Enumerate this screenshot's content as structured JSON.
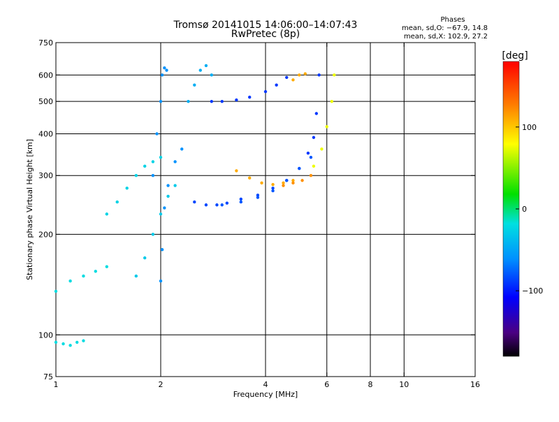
{
  "chart_data": {
    "type": "scatter",
    "title": "Tromsø 20141015 14:06:00–14:07:43",
    "subtitle": "RwPretec (8p)",
    "xlabel": "Frequency [MHz]",
    "ylabel": "Stationary phase Virtual Height [km]",
    "x_scale": "log",
    "y_scale": "log",
    "xlim": [
      1,
      16
    ],
    "ylim": [
      75,
      750
    ],
    "x_ticks": [
      1,
      2,
      4,
      6,
      8,
      10,
      16
    ],
    "x_tick_labels": [
      "1",
      "2",
      "4",
      "6",
      "8",
      "10",
      "16"
    ],
    "y_ticks": [
      75,
      100,
      200,
      300,
      400,
      500,
      600,
      750
    ],
    "y_tick_labels": [
      "75",
      "100",
      "200",
      "300",
      "400",
      "500",
      "600",
      "750"
    ],
    "x_gridlines": [
      2,
      4,
      6,
      8,
      10
    ],
    "y_gridlines": [
      100,
      200,
      300,
      400,
      500,
      600
    ],
    "phases_box": {
      "title": "Phases",
      "line1": "mean, sd,O: −67.9, 14.8",
      "line2": "mean, sd,X: 102.9, 27.2"
    },
    "colorbar": {
      "label": "[deg]",
      "range": [
        -180,
        180
      ],
      "ticks": [
        100,
        0,
        -100
      ],
      "tick_labels": [
        "100",
        "0",
        "−100"
      ]
    },
    "series": [
      {
        "traces": [
          {
            "x": [
              1.0,
              1.1,
              1.2,
              1.3,
              1.4
            ],
            "y": [
              135,
              145,
              150,
              155,
              160
            ],
            "phase": -20
          },
          {
            "x": [
              1.0,
              1.05,
              1.1,
              1.15,
              1.2
            ],
            "y": [
              95,
              94,
              93,
              95,
              96
            ],
            "phase": -20
          },
          {
            "x": [
              1.4,
              1.5,
              1.6,
              1.7,
              1.8,
              1.9,
              2.0
            ],
            "y": [
              230,
              250,
              275,
              300,
              320,
              330,
              340
            ],
            "phase": -25
          },
          {
            "x": [
              1.7,
              1.8,
              1.9,
              2.0,
              2.1,
              2.2
            ],
            "y": [
              150,
              170,
              200,
              230,
              260,
              280
            ],
            "phase": -30
          },
          {
            "x": [
              1.9,
              1.95,
              2.0,
              2.02,
              2.05,
              2.08
            ],
            "y": [
              300,
              400,
              500,
              600,
              630,
              620
            ],
            "phase": -60
          },
          {
            "x": [
              2.0,
              2.02,
              2.05,
              2.1,
              2.2,
              2.3
            ],
            "y": [
              145,
              180,
              240,
              280,
              330,
              360
            ],
            "phase": -60
          },
          {
            "x": [
              2.4,
              2.5,
              2.6,
              2.7,
              2.8
            ],
            "y": [
              500,
              560,
              620,
              640,
              600
            ],
            "phase": -45
          },
          {
            "x": [
              2.5,
              2.7,
              2.9,
              3.1,
              3.4,
              3.8,
              4.2,
              4.6
            ],
            "y": [
              250,
              245,
              245,
              248,
              255,
              262,
              275,
              290
            ],
            "phase": -85
          },
          {
            "x": [
              4.6,
              5.0,
              5.3,
              5.5,
              5.6,
              5.7
            ],
            "y": [
              290,
              315,
              350,
              390,
              460,
              600
            ],
            "phase": -90
          },
          {
            "x": [
              2.8,
              3.0,
              3.3,
              3.6,
              4.0,
              4.3,
              4.6
            ],
            "y": [
              500,
              500,
              505,
              515,
              535,
              560,
              590
            ],
            "phase": -90
          },
          {
            "x": [
              3.0,
              3.4,
              3.8,
              4.2,
              4.6,
              5.0,
              5.4
            ],
            "y": [
              245,
              250,
              258,
              270,
              290,
              315,
              340
            ],
            "phase": -80
          },
          {
            "x": [
              3.3,
              3.6,
              3.9,
              4.2,
              4.5,
              4.8
            ],
            "y": [
              310,
              295,
              285,
              282,
              285,
              290
            ],
            "phase": 110
          },
          {
            "x": [
              4.5,
              4.8,
              5.1,
              5.4
            ],
            "y": [
              280,
              285,
              290,
              300
            ],
            "phase": 120
          },
          {
            "x": [
              5.5,
              5.8,
              6.0,
              6.2,
              6.3
            ],
            "y": [
              320,
              360,
              420,
              500,
              600
            ],
            "phase": 75
          },
          {
            "x": [
              4.8,
              5.0,
              5.2
            ],
            "y": [
              580,
              600,
              605
            ],
            "phase": 110
          }
        ]
      }
    ]
  }
}
